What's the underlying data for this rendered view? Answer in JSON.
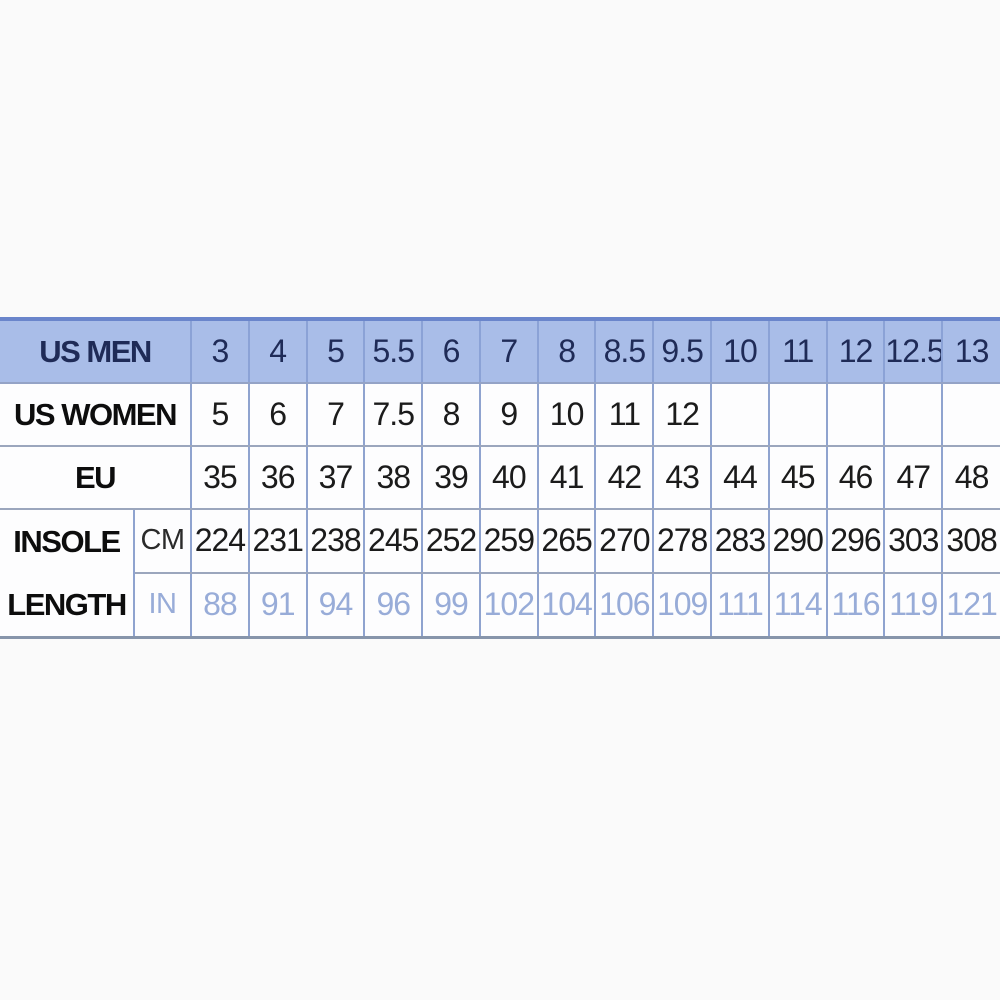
{
  "page": {
    "background_color": "#fafafa"
  },
  "chart_data": {
    "type": "table",
    "columns_count": 14,
    "rows": [
      {
        "header": "US MEN",
        "unit": "",
        "values": [
          "3",
          "4",
          "5",
          "5.5",
          "6",
          "7",
          "8",
          "8.5",
          "9.5",
          "10",
          "11",
          "12",
          "12.5",
          "13"
        ]
      },
      {
        "header": "US WOMEN",
        "unit": "",
        "values": [
          "5",
          "6",
          "7",
          "7.5",
          "8",
          "9",
          "10",
          "11",
          "12",
          "",
          "",
          "",
          "",
          ""
        ]
      },
      {
        "header": "EU",
        "unit": "",
        "values": [
          "35",
          "36",
          "37",
          "38",
          "39",
          "40",
          "41",
          "42",
          "43",
          "44",
          "45",
          "46",
          "47",
          "48"
        ]
      },
      {
        "header": "INSOLE LENGTH",
        "unit": "CM",
        "values": [
          "224",
          "231",
          "238",
          "245",
          "252",
          "259",
          "265",
          "270",
          "278",
          "283",
          "290",
          "296",
          "303",
          "308"
        ]
      },
      {
        "header": "INSOLE LENGTH",
        "unit": "IN",
        "values": [
          "88",
          "91",
          "94",
          "96",
          "99",
          "102",
          "104",
          "106",
          "109",
          "111",
          "114",
          "116",
          "119",
          "121"
        ]
      }
    ]
  },
  "display": {
    "insole_label_lines": [
      "INSOLE",
      "LENGTH"
    ]
  },
  "colors": {
    "header_row_bg": "#a9bde8",
    "header_row_text": "#1f2b57",
    "header_top_border": "#6a85cb",
    "grid_vertical_border": "#8fa3cf",
    "grid_horizontal_border": "#9ba6bd",
    "bottom_border": "#8795ab",
    "body_text": "#1b1b1b",
    "in_row_text": "#98acd8",
    "cell_bg": "#fdfdfe",
    "page_bg": "#fafafa"
  }
}
